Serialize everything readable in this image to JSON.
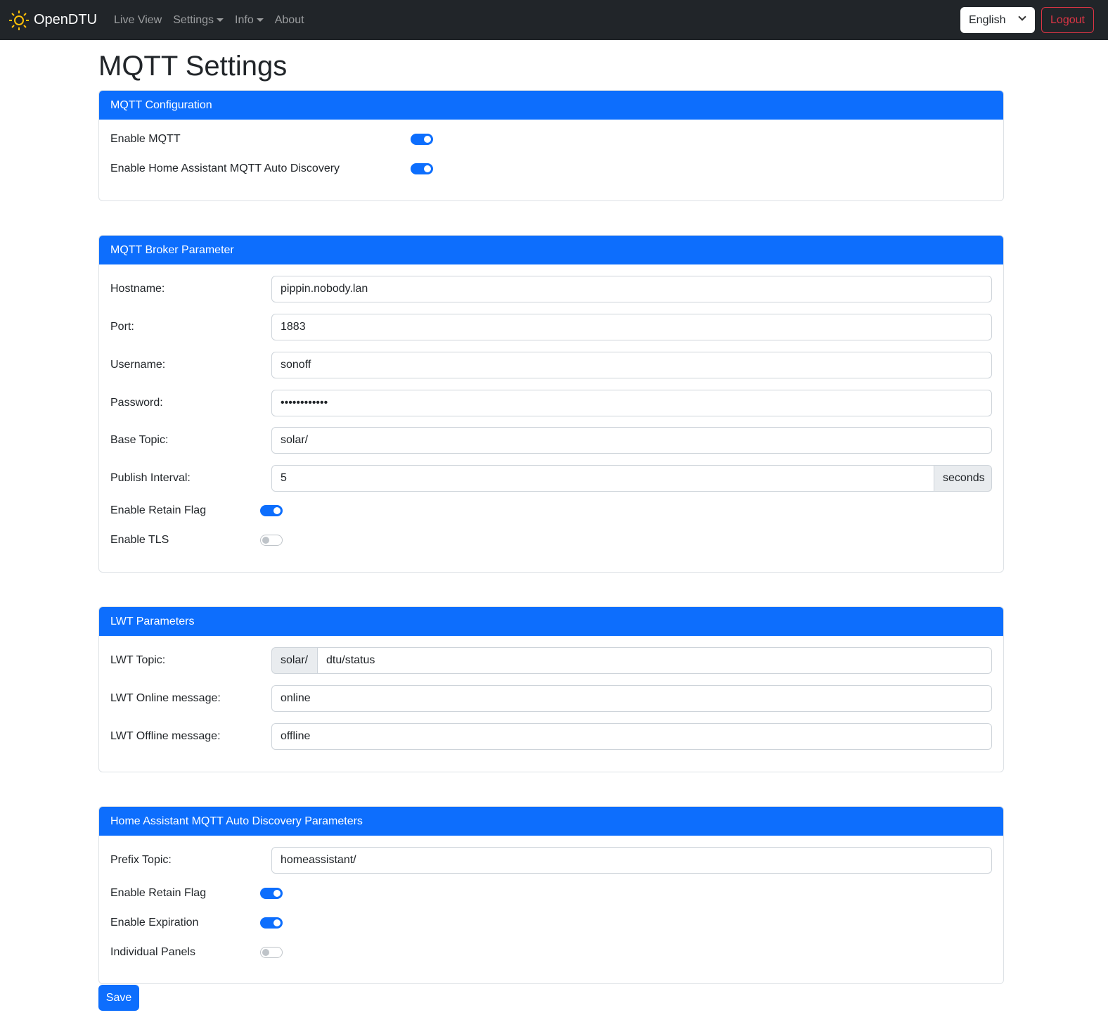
{
  "nav": {
    "brand": "OpenDTU",
    "links": [
      "Live View",
      "Settings",
      "Info",
      "About"
    ],
    "language": "English",
    "logout": "Logout"
  },
  "page_title": "MQTT Settings",
  "config": {
    "title": "MQTT Configuration",
    "enable_mqtt": "Enable MQTT",
    "enable_mqtt_on": true,
    "enable_ha": "Enable Home Assistant MQTT Auto Discovery",
    "enable_ha_on": true
  },
  "broker": {
    "title": "MQTT Broker Parameter",
    "hostname_label": "Hostname:",
    "hostname": "pippin.nobody.lan",
    "port_label": "Port:",
    "port": "1883",
    "username_label": "Username:",
    "username": "sonoff",
    "password_label": "Password:",
    "password": "••••••••••••",
    "base_topic_label": "Base Topic:",
    "base_topic": "solar/",
    "interval_label": "Publish Interval:",
    "interval": "5",
    "interval_unit": "seconds",
    "retain_label": "Enable Retain Flag",
    "retain_on": true,
    "tls_label": "Enable TLS",
    "tls_on": false
  },
  "lwt": {
    "title": "LWT Parameters",
    "topic_label": "LWT Topic:",
    "topic_prefix": "solar/",
    "topic": "dtu/status",
    "online_label": "LWT Online message:",
    "online": "online",
    "offline_label": "LWT Offline message:",
    "offline": "offline"
  },
  "ha": {
    "title": "Home Assistant MQTT Auto Discovery Parameters",
    "prefix_label": "Prefix Topic:",
    "prefix": "homeassistant/",
    "retain_label": "Enable Retain Flag",
    "retain_on": true,
    "expiration_label": "Enable Expiration",
    "expiration_on": true,
    "panels_label": "Individual Panels",
    "panels_on": false
  },
  "save": "Save",
  "colors": {
    "primary": "#0d6efd",
    "navbar": "#212529",
    "danger": "#dc3545",
    "brand_icon": "#ffc107"
  }
}
